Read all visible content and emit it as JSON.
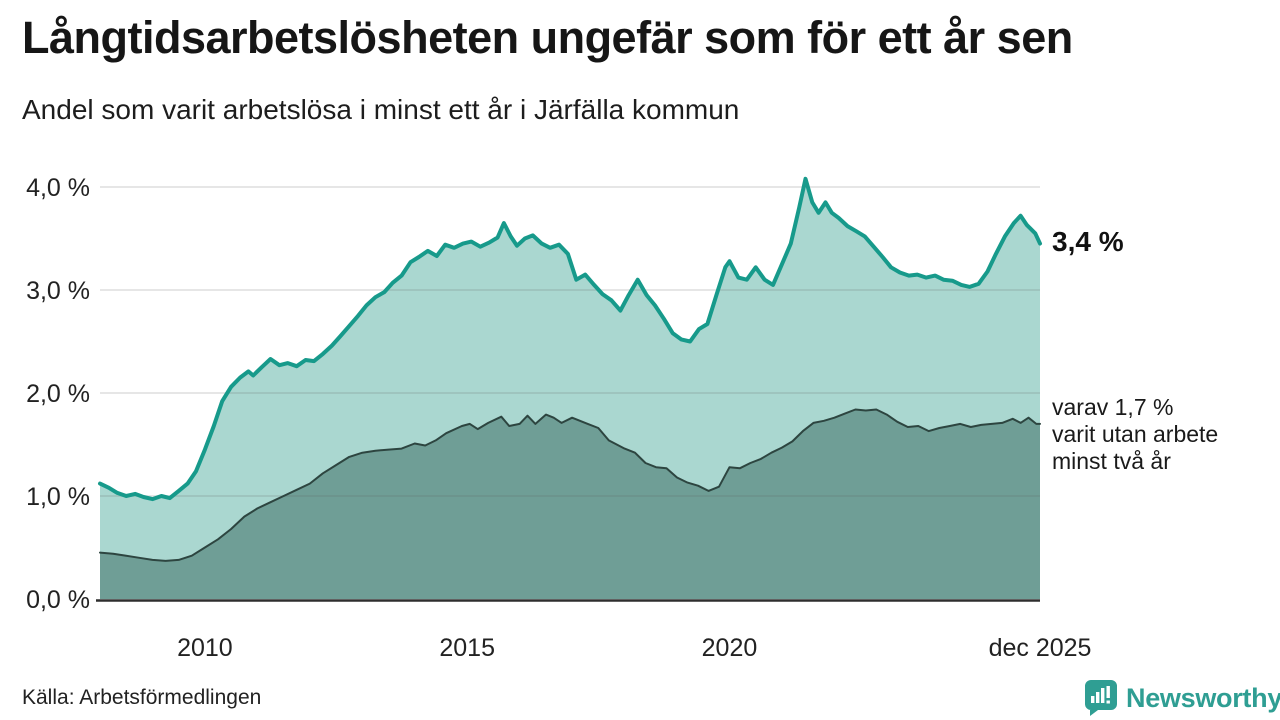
{
  "title": "Långtidsarbetslösheten ungefär som för ett år sen",
  "subtitle": "Andel som varit arbetslösa i minst ett år i Järfälla kommun",
  "source": "Källa: Arbetsförmedlingen",
  "branding": {
    "name": "Newsworthy",
    "color": "#2f9e93"
  },
  "annotations": {
    "latest_value_label": "3,4 %",
    "secondary_label": "varav 1,7 %\nvarit utan arbete\nminst två år"
  },
  "colors": {
    "line_primary": "#179a8b",
    "fill_primary": "#aad7d0",
    "line_secondary": "#2d4540",
    "fill_secondary": "#6f9e96",
    "axis": "#2e2e2e",
    "grid": "#d6d6d6",
    "text": "#1a1a1a"
  },
  "chart_data": {
    "type": "area",
    "title": "Långtidsarbetslösheten ungefär som för ett år sen",
    "subtitle": "Andel som varit arbetslösa i minst ett år i Järfälla kommun",
    "x_unit": "year (monthly observations)",
    "y_unit": "percent of workforce",
    "xlim": [
      2008.0,
      2025.92
    ],
    "ylim": [
      0,
      4.1
    ],
    "grid": true,
    "legend_position": "annotations-right",
    "x_ticks": [
      {
        "v": 2010,
        "label": "2010"
      },
      {
        "v": 2015,
        "label": "2015"
      },
      {
        "v": 2020,
        "label": "2020"
      },
      {
        "v": 2025.92,
        "label": "dec 2025"
      }
    ],
    "y_ticks": [
      {
        "v": 0,
        "label": "0,0 %"
      },
      {
        "v": 1,
        "label": "1,0 %"
      },
      {
        "v": 2,
        "label": "2,0 %"
      },
      {
        "v": 3,
        "label": "3,0 %"
      },
      {
        "v": 4,
        "label": "4,0 %"
      }
    ],
    "series": [
      {
        "name": "Arbetslösa minst ett år",
        "latest_label": "3,4 %",
        "line_color": "#179a8b",
        "fill_color": "#aad7d0",
        "line_width": 4,
        "x": [
          2008.0,
          2008.17,
          2008.33,
          2008.5,
          2008.67,
          2008.83,
          2009.0,
          2009.17,
          2009.33,
          2009.5,
          2009.67,
          2009.83,
          2010.0,
          2010.17,
          2010.33,
          2010.5,
          2010.67,
          2010.83,
          2010.92,
          2011.08,
          2011.25,
          2011.42,
          2011.58,
          2011.75,
          2011.92,
          2012.08,
          2012.25,
          2012.42,
          2012.58,
          2012.75,
          2012.92,
          2013.08,
          2013.25,
          2013.42,
          2013.58,
          2013.75,
          2013.92,
          2014.08,
          2014.25,
          2014.42,
          2014.58,
          2014.75,
          2014.92,
          2015.08,
          2015.25,
          2015.42,
          2015.58,
          2015.7,
          2015.83,
          2015.95,
          2016.1,
          2016.25,
          2016.42,
          2016.58,
          2016.75,
          2016.92,
          2017.08,
          2017.25,
          2017.42,
          2017.58,
          2017.75,
          2017.92,
          2018.08,
          2018.25,
          2018.42,
          2018.58,
          2018.75,
          2018.92,
          2019.08,
          2019.25,
          2019.42,
          2019.58,
          2019.75,
          2019.92,
          2020.0,
          2020.17,
          2020.33,
          2020.5,
          2020.67,
          2020.83,
          2021.0,
          2021.17,
          2021.33,
          2021.45,
          2021.58,
          2021.7,
          2021.83,
          2021.95,
          2022.08,
          2022.25,
          2022.42,
          2022.58,
          2022.75,
          2022.92,
          2023.08,
          2023.25,
          2023.42,
          2023.58,
          2023.75,
          2023.92,
          2024.08,
          2024.25,
          2024.42,
          2024.58,
          2024.75,
          2024.92,
          2025.08,
          2025.25,
          2025.42,
          2025.55,
          2025.67,
          2025.83,
          2025.92
        ],
        "values": [
          1.12,
          1.08,
          1.03,
          1.0,
          1.02,
          0.99,
          0.97,
          1.0,
          0.98,
          1.05,
          1.12,
          1.24,
          1.45,
          1.68,
          1.92,
          2.06,
          2.15,
          2.21,
          2.17,
          2.25,
          2.33,
          2.27,
          2.29,
          2.26,
          2.32,
          2.31,
          2.38,
          2.46,
          2.55,
          2.65,
          2.75,
          2.85,
          2.93,
          2.98,
          3.07,
          3.14,
          3.27,
          3.32,
          3.38,
          3.33,
          3.44,
          3.41,
          3.45,
          3.47,
          3.42,
          3.46,
          3.51,
          3.65,
          3.52,
          3.43,
          3.5,
          3.53,
          3.45,
          3.41,
          3.44,
          3.35,
          3.1,
          3.15,
          3.05,
          2.96,
          2.9,
          2.8,
          2.95,
          3.1,
          2.95,
          2.85,
          2.72,
          2.58,
          2.52,
          2.5,
          2.62,
          2.67,
          2.95,
          3.22,
          3.28,
          3.12,
          3.1,
          3.22,
          3.1,
          3.05,
          3.25,
          3.45,
          3.8,
          4.08,
          3.85,
          3.75,
          3.85,
          3.75,
          3.7,
          3.62,
          3.57,
          3.52,
          3.42,
          3.32,
          3.22,
          3.17,
          3.14,
          3.15,
          3.12,
          3.14,
          3.1,
          3.09,
          3.05,
          3.03,
          3.06,
          3.18,
          3.35,
          3.52,
          3.65,
          3.72,
          3.63,
          3.55,
          3.45
        ]
      },
      {
        "name": "varav arbetslösa minst två år",
        "latest_label": "1,7 %",
        "line_color": "#2d4540",
        "fill_color": "#6f9e96",
        "line_width": 2,
        "x": [
          2008.0,
          2008.25,
          2008.5,
          2008.75,
          2009.0,
          2009.25,
          2009.5,
          2009.75,
          2010.0,
          2010.25,
          2010.5,
          2010.75,
          2011.0,
          2011.25,
          2011.5,
          2011.75,
          2012.0,
          2012.25,
          2012.5,
          2012.75,
          2013.0,
          2013.25,
          2013.5,
          2013.75,
          2014.0,
          2014.2,
          2014.4,
          2014.6,
          2014.9,
          2015.05,
          2015.2,
          2015.4,
          2015.65,
          2015.8,
          2016.0,
          2016.15,
          2016.3,
          2016.5,
          2016.65,
          2016.8,
          2017.0,
          2017.3,
          2017.5,
          2017.7,
          2018.0,
          2018.2,
          2018.4,
          2018.6,
          2018.8,
          2019.0,
          2019.2,
          2019.4,
          2019.6,
          2019.8,
          2020.0,
          2020.2,
          2020.4,
          2020.6,
          2020.8,
          2021.0,
          2021.2,
          2021.4,
          2021.6,
          2021.8,
          2022.0,
          2022.2,
          2022.4,
          2022.6,
          2022.8,
          2023.0,
          2023.2,
          2023.4,
          2023.6,
          2023.8,
          2024.0,
          2024.2,
          2024.4,
          2024.6,
          2024.8,
          2025.0,
          2025.2,
          2025.4,
          2025.55,
          2025.7,
          2025.85,
          2025.92
        ],
        "values": [
          0.45,
          0.44,
          0.42,
          0.4,
          0.38,
          0.37,
          0.38,
          0.42,
          0.5,
          0.58,
          0.68,
          0.8,
          0.88,
          0.94,
          1.0,
          1.06,
          1.12,
          1.22,
          1.3,
          1.38,
          1.42,
          1.44,
          1.45,
          1.46,
          1.51,
          1.49,
          1.54,
          1.61,
          1.68,
          1.7,
          1.65,
          1.71,
          1.77,
          1.68,
          1.7,
          1.78,
          1.7,
          1.79,
          1.76,
          1.71,
          1.76,
          1.7,
          1.66,
          1.54,
          1.46,
          1.42,
          1.32,
          1.28,
          1.27,
          1.18,
          1.13,
          1.1,
          1.05,
          1.09,
          1.28,
          1.27,
          1.32,
          1.36,
          1.42,
          1.47,
          1.53,
          1.63,
          1.71,
          1.73,
          1.76,
          1.8,
          1.84,
          1.83,
          1.84,
          1.79,
          1.72,
          1.67,
          1.68,
          1.63,
          1.66,
          1.68,
          1.7,
          1.67,
          1.69,
          1.7,
          1.71,
          1.75,
          1.71,
          1.76,
          1.7,
          1.7
        ]
      }
    ]
  }
}
